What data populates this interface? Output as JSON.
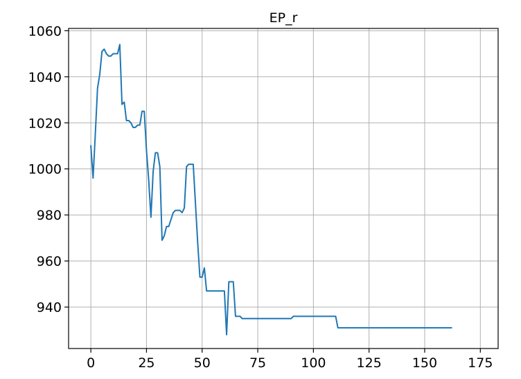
{
  "chart_data": {
    "type": "line",
    "title": "EP_r",
    "xlabel": "",
    "ylabel": "",
    "xlim": [
      -10,
      183
    ],
    "ylim": [
      922,
      1061
    ],
    "xticks": [
      0,
      25,
      50,
      75,
      100,
      125,
      150,
      175
    ],
    "xtick_labels": [
      "0",
      "25",
      "50",
      "75",
      "100",
      "125",
      "150",
      "175"
    ],
    "yticks": [
      940,
      960,
      980,
      1000,
      1020,
      1040,
      1060
    ],
    "ytick_labels": [
      "940",
      "960",
      "980",
      "1000",
      "1020",
      "1040",
      "1060"
    ],
    "grid": true,
    "line_color": "#1f77b4",
    "series": [
      {
        "x": [
          0,
          1,
          2,
          3,
          4,
          5,
          6,
          7,
          8,
          9,
          10,
          11,
          12,
          13,
          14,
          15,
          16,
          17,
          18,
          19,
          20,
          21,
          22,
          23,
          24,
          25,
          26,
          27,
          28,
          29,
          30,
          31,
          32,
          33,
          34,
          35,
          36,
          37,
          38,
          39,
          40,
          41,
          42,
          43,
          44,
          45,
          46,
          47,
          48,
          49,
          50,
          51,
          52,
          60,
          61,
          62,
          63,
          64,
          65,
          66,
          67,
          68,
          90,
          91,
          110,
          111,
          162
        ],
        "y": [
          1010,
          996,
          1015,
          1035,
          1041,
          1051,
          1052,
          1050,
          1049,
          1049,
          1050,
          1050,
          1050,
          1054,
          1028,
          1029,
          1021,
          1021,
          1020,
          1018,
          1018,
          1019,
          1019,
          1025,
          1025,
          1008,
          995,
          979,
          999,
          1007,
          1007,
          1001,
          969,
          971,
          975,
          975,
          978,
          981,
          982,
          982,
          982,
          981,
          983,
          1001,
          1002,
          1002,
          1002,
          985,
          968,
          953,
          953,
          957,
          947,
          947,
          928,
          951,
          951,
          951,
          936,
          936,
          936,
          935,
          935,
          936,
          936,
          931,
          931
        ]
      }
    ]
  }
}
